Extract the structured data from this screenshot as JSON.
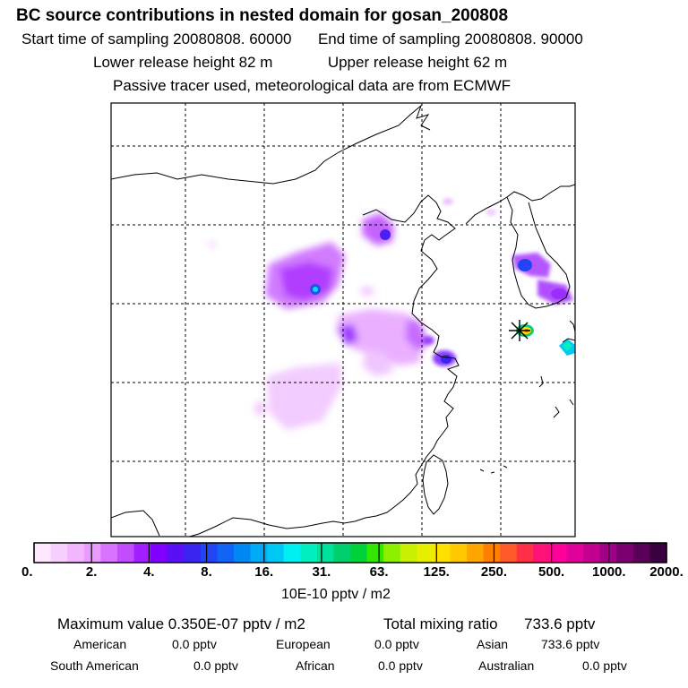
{
  "header": {
    "title": "BC  source contributions in nested domain for gosan_200808",
    "start_label": "Start time of sampling",
    "start_value": "20080808. 60000",
    "end_label": "End time of sampling",
    "end_value": "20080808. 90000",
    "lower_label": "Lower release height",
    "lower_value": "82 m",
    "upper_label": "Upper release height",
    "upper_value": "62 m",
    "note": "Passive tracer used, meteorological data are from ECMWF"
  },
  "map": {
    "description_icon": "receptor-star-icon",
    "plumes": [
      {
        "name": "north-china-plume",
        "intensity": 3
      },
      {
        "name": "beijing-hotspot",
        "intensity": 4
      },
      {
        "name": "central-china-plume",
        "intensity": 3
      },
      {
        "name": "shanghai-hotspot",
        "intensity": 4
      },
      {
        "name": "korea-hotspot",
        "intensity": 4
      },
      {
        "name": "gosan-receptor",
        "intensity": 5
      },
      {
        "name": "japan-hotspot",
        "intensity": 5
      }
    ]
  },
  "colorbar": {
    "colors": [
      "#fde8ff",
      "#f8d0ff",
      "#f2b6ff",
      "#e89cff",
      "#d973ff",
      "#c44cff",
      "#a31fff",
      "#8000ff",
      "#5a10f5",
      "#3a25f0",
      "#2244f5",
      "#1065f5",
      "#0088f5",
      "#00aaf8",
      "#00c8f5",
      "#00f0f0",
      "#00f0c0",
      "#00e29a",
      "#00cf6e",
      "#00d33a",
      "#33e800",
      "#8df000",
      "#c8f000",
      "#e8ee00",
      "#ffe100",
      "#ffc800",
      "#ffa600",
      "#ff8000",
      "#ff5a2a",
      "#ff2f48",
      "#ff1177",
      "#ff0099",
      "#e0009a",
      "#c30090",
      "#a00088",
      "#7a0070",
      "#5a0058",
      "#3a0040"
    ],
    "tick_labels": [
      "0.",
      "2.",
      "4.",
      "8.",
      "16.",
      "31.",
      "63.",
      "125.",
      "250.",
      "500.",
      "1000.",
      "2000."
    ],
    "unit": "10E-10 pptv / m2"
  },
  "stats": {
    "max_label": "Maximum value",
    "max_value": "0.350E-07 pptv / m2",
    "total_label": "Total mixing ratio",
    "total_value": "733.6 pptv",
    "regions": [
      {
        "name": "American",
        "value": "0.0 pptv"
      },
      {
        "name": "European",
        "value": "0.0 pptv"
      },
      {
        "name": "Asian",
        "value": "733.6 pptv"
      },
      {
        "name": "South American",
        "value": "0.0 pptv"
      },
      {
        "name": "African",
        "value": "0.0 pptv"
      },
      {
        "name": "Australian",
        "value": "0.0 pptv"
      }
    ]
  }
}
